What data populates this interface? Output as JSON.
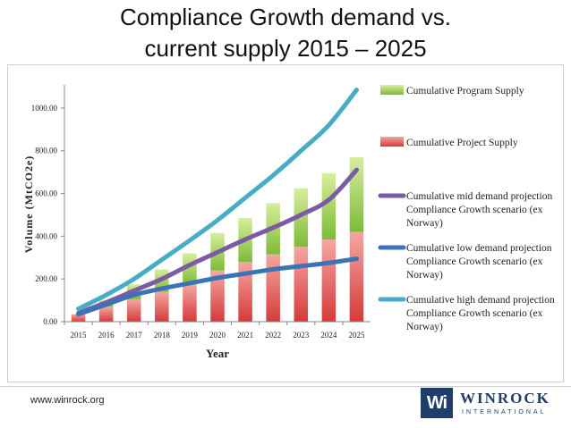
{
  "slide": {
    "title_line1": "Compliance Growth demand vs.",
    "title_line2": "current supply 2015 – 2025",
    "footer_url": "www.winrock.org",
    "logo_name": "WINROCK",
    "logo_sub": "INTERNATIONAL",
    "logo_mark": "Wi"
  },
  "chart_data": {
    "type": "bar",
    "title": "Compliance Growth demand vs. current supply 2015 – 2025",
    "xlabel": "Year",
    "ylabel": "Volume (MtCO2e)",
    "ylim": [
      0,
      1100
    ],
    "yticks": [
      "0.00",
      "200.00",
      "400.00",
      "600.00",
      "800.00",
      "1000.00"
    ],
    "categories": [
      "2015",
      "2016",
      "2017",
      "2018",
      "2019",
      "2020",
      "2021",
      "2022",
      "2023",
      "2024",
      "2025"
    ],
    "series": [
      {
        "name": "Cumulative Project Supply",
        "kind": "stacked-bar",
        "color": "#e04848",
        "values": [
          35,
          70,
          105,
          140,
          175,
          240,
          280,
          315,
          350,
          385,
          420
        ]
      },
      {
        "name": "Cumulative Program Supply",
        "kind": "stacked-bar",
        "color": "#8cc63e",
        "values": [
          0,
          30,
          70,
          105,
          145,
          175,
          205,
          240,
          275,
          310,
          350
        ]
      },
      {
        "name": "Cumulative mid demand projection Compliance Growth scenario (ex Norway)",
        "kind": "line",
        "color": "#7b5aa6",
        "values": [
          40,
          90,
          145,
          200,
          265,
          325,
          385,
          440,
          500,
          570,
          710
        ]
      },
      {
        "name": "Cumulative low demand projection Compliance Growth scenario (ex Norway)",
        "kind": "line",
        "color": "#3d73b5",
        "values": [
          35,
          80,
          125,
          155,
          180,
          205,
          225,
          245,
          260,
          275,
          295
        ]
      },
      {
        "name": "Cumulative high demand projection Compliance Growth scenario (ex Norway)",
        "kind": "line",
        "color": "#49acc6",
        "values": [
          60,
          125,
          200,
          290,
          380,
          475,
          580,
          685,
          800,
          920,
          1085
        ]
      }
    ],
    "legend": [
      {
        "label": "Cumulative Program Supply",
        "kind": "bar",
        "color": "#8cc63e"
      },
      {
        "label": "Cumulative Project Supply",
        "kind": "bar",
        "color": "#e04848"
      },
      {
        "label": "Cumulative mid demand projection Compliance Growth scenario (ex Norway)",
        "lines": [
          "Cumulative mid demand projection",
          "Compliance Growth scenario (ex",
          "Norway)"
        ],
        "kind": "line",
        "color": "#7b5aa6"
      },
      {
        "label": "Cumulative low demand projection Compliance Growth scenario (ex Norway)",
        "lines": [
          "Cumulative low demand projection",
          "Compliance Growth scenario (ex",
          "Norway)"
        ],
        "kind": "line",
        "color": "#3d73b5"
      },
      {
        "label": "Cumulative high demand projection Compliance Growth scenario (ex Norway)",
        "lines": [
          "Cumulative high demand projection",
          "Compliance Growth scenario (ex",
          "Norway)"
        ],
        "kind": "line",
        "color": "#49acc6"
      }
    ],
    "legend_position": "right"
  }
}
